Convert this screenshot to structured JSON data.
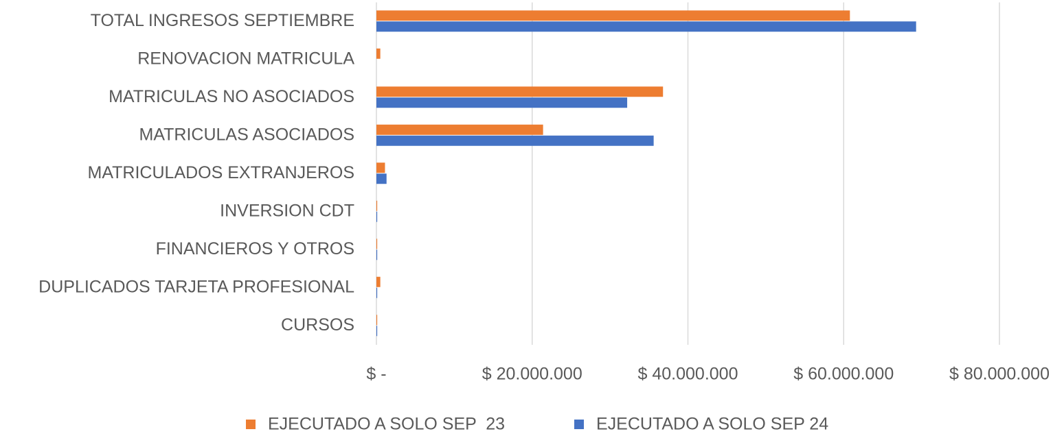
{
  "chart_data": {
    "type": "hbar",
    "categories": [
      "TOTAL INGRESOS SEPTIEMBRE",
      "RENOVACION MATRICULA",
      "MATRICULAS NO ASOCIADOS",
      "MATRICULAS ASOCIADOS",
      "MATRICULADOS EXTRANJEROS",
      "INVERSION CDT",
      "FINANCIEROS Y OTROS",
      "DUPLICADOS TARJETA PROFESIONAL",
      "CURSOS"
    ],
    "series": [
      {
        "name": "EJECUTADO A SOLO SEP  23",
        "color": "#ed7d31",
        "values": [
          60800000,
          500000,
          36800000,
          21400000,
          1100000,
          100000,
          100000,
          500000,
          100000
        ]
      },
      {
        "name": "EJECUTADO A SOLO SEP 24",
        "color": "#4472c4",
        "values": [
          69300000,
          0,
          32200000,
          35600000,
          1300000,
          100000,
          100000,
          100000,
          100000
        ]
      }
    ],
    "xlim": [
      0,
      80000000
    ],
    "xticks": [
      {
        "value": 0,
        "label": "$ -"
      },
      {
        "value": 20000000,
        "label": "$ 20.000.000"
      },
      {
        "value": 40000000,
        "label": "$ 40.000.000"
      },
      {
        "value": 60000000,
        "label": "$ 60.000.000"
      },
      {
        "value": 80000000,
        "label": "$ 80.000.000"
      }
    ],
    "grid": true,
    "legend": "bottom"
  }
}
